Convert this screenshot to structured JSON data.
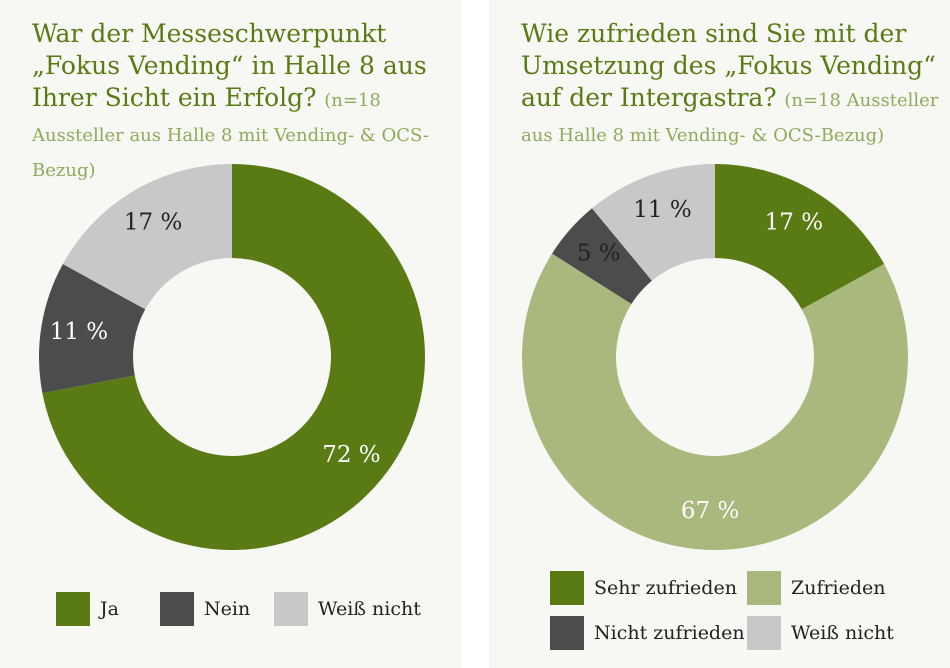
{
  "chart_data": [
    {
      "type": "pie",
      "variant": "donut",
      "title": "War der Messeschwerpunkt „Fokus Vending“ in Halle 8 aus Ihrer Sicht ein Erfolg?",
      "note": "(n=18 Aussteller aus Halle 8 mit Vending- & OCS-Bezug)",
      "categories": [
        "Ja",
        "Nein",
        "Weiß nicht"
      ],
      "values": [
        72,
        11,
        17
      ],
      "labels": [
        "72 %",
        "11 %",
        "17 %"
      ],
      "colors": [
        "#5a7a14",
        "#4c4c4c",
        "#c8c8c8"
      ],
      "label_colors": [
        "#ffffff",
        "#ffffff",
        "#222222"
      ],
      "legend": [
        "Ja",
        "Nein",
        "Weiß nicht"
      ],
      "legend_colors": [
        "#5a7a14",
        "#4c4c4c",
        "#c8c8c8"
      ],
      "legend_position": "bottom"
    },
    {
      "type": "pie",
      "variant": "donut",
      "title": "Wie zufrieden sind Sie mit der Umsetzung des „Fokus Vending“ auf der Intergastra?",
      "note": "(n=18 Aussteller aus Halle 8 mit Vending- & OCS-Bezug)",
      "categories": [
        "Sehr zufrieden",
        "Zufrieden",
        "Nicht zufrieden",
        "Weiß nicht"
      ],
      "values": [
        17,
        67,
        5,
        11
      ],
      "labels": [
        "17 %",
        "67 %",
        "5 %",
        "11 %"
      ],
      "colors": [
        "#5a7a14",
        "#a9b87d",
        "#4c4c4c",
        "#c8c8c8"
      ],
      "label_colors": [
        "#ffffff",
        "#ffffff",
        "#222222",
        "#222222"
      ],
      "legend": [
        "Sehr zufrieden",
        "Zufrieden",
        "Nicht zufrieden",
        "Weiß nicht"
      ],
      "legend_colors": [
        "#5a7a14",
        "#a9b87d",
        "#4c4c4c",
        "#c8c8c8"
      ],
      "legend_position": "bottom"
    }
  ]
}
